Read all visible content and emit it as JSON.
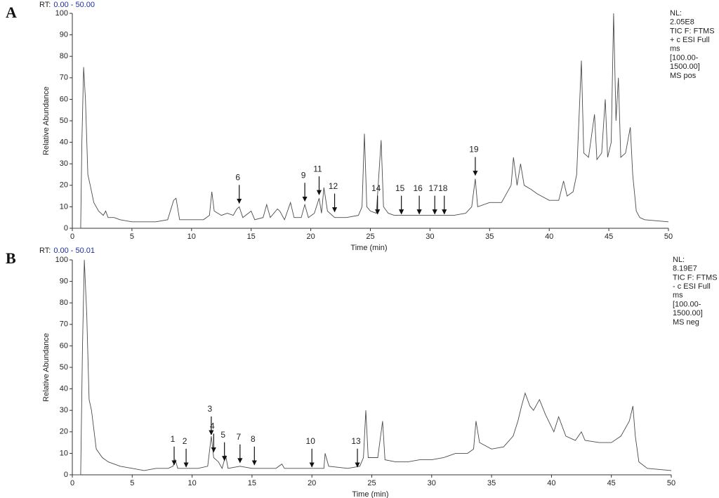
{
  "chart_data": [
    {
      "type": "line",
      "panel": "A",
      "rt_label": "RT:",
      "rt_range": "0.00 - 50.00",
      "info_lines": [
        "NL:",
        "2.05E8",
        "TIC F: FTMS",
        "+ c ESI Full",
        "ms",
        "[100.00-",
        "1500.00]",
        "MS pos"
      ],
      "x_label": "Time (min)",
      "y_label": "Relative Abundance",
      "color": "#4a4a4a",
      "xlim": [
        0,
        50
      ],
      "ylim": [
        0,
        100
      ],
      "xticks": [
        0,
        5,
        10,
        15,
        20,
        25,
        30,
        35,
        40,
        45,
        50
      ],
      "yticks": [
        0,
        10,
        20,
        30,
        40,
        50,
        60,
        70,
        80,
        90,
        100
      ],
      "x": [
        0,
        0.7,
        0.8,
        0.95,
        1.1,
        1.3,
        1.5,
        1.8,
        2.2,
        2.6,
        2.8,
        3.0,
        3.5,
        4,
        5,
        6,
        7,
        8,
        8.5,
        8.7,
        9,
        10,
        11,
        11.5,
        11.7,
        11.9,
        12.5,
        13,
        13.5,
        13.8,
        14,
        14.3,
        15,
        15.3,
        16,
        16.3,
        16.6,
        17.2,
        17.4,
        17.8,
        18.3,
        18.6,
        19.2,
        19.5,
        19.8,
        20.3,
        20.7,
        20.9,
        21.1,
        21.4,
        22,
        23,
        24,
        24.3,
        24.5,
        24.7,
        25,
        25.5,
        25.9,
        26.1,
        26.5,
        27,
        28,
        29,
        30,
        31,
        32,
        33,
        33.5,
        33.8,
        34,
        35,
        36,
        36.8,
        37,
        37.3,
        37.6,
        37.9,
        38.5,
        39,
        40,
        40.8,
        41.2,
        41.5,
        42,
        42.3,
        42.7,
        42.9,
        43.3,
        43.8,
        44,
        44.4,
        44.7,
        44.9,
        45.2,
        45.4,
        45.6,
        45.8,
        46,
        46.4,
        46.8,
        47,
        47.3,
        47.6,
        48,
        50
      ],
      "values": [
        0,
        0,
        40,
        75,
        60,
        25,
        20,
        12,
        8,
        6,
        8,
        5,
        5,
        4,
        3,
        3,
        3,
        4,
        13,
        14,
        4,
        4,
        4,
        6,
        17,
        8,
        6,
        7,
        6,
        9,
        10,
        5,
        8,
        4,
        5,
        11,
        5,
        9,
        8,
        4,
        12,
        5,
        5,
        11,
        5,
        7,
        14,
        7,
        19,
        8,
        5,
        5,
        6,
        10,
        44,
        10,
        8,
        7,
        41,
        10,
        7,
        6,
        6,
        6,
        6,
        6,
        6,
        7,
        10,
        23,
        10,
        12,
        12,
        20,
        33,
        20,
        30,
        20,
        18,
        16,
        13,
        13,
        22,
        15,
        17,
        25,
        78,
        35,
        33,
        53,
        32,
        35,
        60,
        33,
        40,
        100,
        50,
        70,
        33,
        35,
        47,
        25,
        8,
        5,
        4,
        3
      ],
      "annotations": [
        {
          "text": "6",
          "x": 14,
          "y": 11
        },
        {
          "text": "9",
          "x": 19.5,
          "y": 12
        },
        {
          "text": "11",
          "x": 20.7,
          "y": 15
        },
        {
          "text": "12",
          "x": 22,
          "y": 7
        },
        {
          "text": "14",
          "x": 25.6,
          "y": 6
        },
        {
          "text": "15",
          "x": 27.6,
          "y": 6
        },
        {
          "text": "16",
          "x": 29.1,
          "y": 6
        },
        {
          "text": "17",
          "x": 30.4,
          "y": 6
        },
        {
          "text": "18",
          "x": 31.2,
          "y": 6
        },
        {
          "text": "19",
          "x": 33.8,
          "y": 24
        }
      ]
    },
    {
      "type": "line",
      "panel": "B",
      "rt_label": "RT:",
      "rt_range": "0.00 - 50.01",
      "info_lines": [
        "NL:",
        "8.19E7",
        "TIC F: FTMS",
        "- c ESI Full",
        "ms",
        "[100.00-",
        "1500.00]",
        "MS neg"
      ],
      "x_label": "Time (min)",
      "y_label": "Relative Abundance",
      "color": "#4a4a4a",
      "xlim": [
        0,
        50
      ],
      "ylim": [
        0,
        100
      ],
      "xticks": [
        0,
        5,
        10,
        15,
        20,
        25,
        30,
        35,
        40,
        45,
        50
      ],
      "yticks": [
        0,
        10,
        20,
        30,
        40,
        50,
        60,
        70,
        80,
        90,
        100
      ],
      "x": [
        0,
        0.7,
        0.85,
        1.0,
        1.2,
        1.4,
        1.6,
        2,
        2.5,
        3,
        4,
        5,
        6,
        7,
        8,
        8.4,
        8.6,
        8.8,
        9.5,
        10.5,
        11.3,
        11.6,
        11.8,
        12.2,
        12.5,
        12.8,
        13,
        14,
        15,
        16,
        17,
        17.5,
        17.7,
        19,
        20,
        21,
        21.1,
        21.4,
        23,
        24,
        24.3,
        24.5,
        24.7,
        25.5,
        25.9,
        26.1,
        27,
        28,
        29,
        30,
        31,
        32,
        33,
        33.5,
        33.7,
        34,
        35,
        36,
        36.8,
        37.2,
        37.5,
        37.8,
        38.2,
        38.5,
        39,
        39.5,
        40.2,
        40.6,
        41.2,
        42,
        42.5,
        42.8,
        44,
        45,
        45.8,
        46.5,
        46.8,
        47,
        47.3,
        48,
        50
      ],
      "values": [
        0,
        0,
        60,
        100,
        75,
        35,
        30,
        12,
        8,
        6,
        4,
        3,
        2,
        3,
        3,
        4,
        7,
        3,
        3,
        3,
        4,
        18,
        8,
        6,
        3,
        9,
        3,
        4,
        3,
        3,
        3,
        5,
        3,
        3,
        3,
        3,
        10,
        4,
        3,
        4,
        8,
        30,
        8,
        8,
        25,
        7,
        6,
        6,
        7,
        7,
        8,
        10,
        10,
        12,
        25,
        15,
        12,
        13,
        18,
        25,
        32,
        38,
        32,
        30,
        35,
        28,
        20,
        27,
        18,
        16,
        20,
        16,
        15,
        15,
        18,
        25,
        32,
        18,
        6,
        3,
        2
      ],
      "annotations": [
        {
          "text": "1",
          "x": 8.5,
          "y": 4
        },
        {
          "text": "2",
          "x": 9.5,
          "y": 3
        },
        {
          "text": "3",
          "x": 11.6,
          "y": 18
        },
        {
          "text": "4",
          "x": 11.8,
          "y": 10
        },
        {
          "text": "5",
          "x": 12.7,
          "y": 6
        },
        {
          "text": "7",
          "x": 14,
          "y": 5
        },
        {
          "text": "8",
          "x": 15.2,
          "y": 4
        },
        {
          "text": "10",
          "x": 20,
          "y": 3
        },
        {
          "text": "13",
          "x": 23.8,
          "y": 3
        }
      ]
    }
  ]
}
